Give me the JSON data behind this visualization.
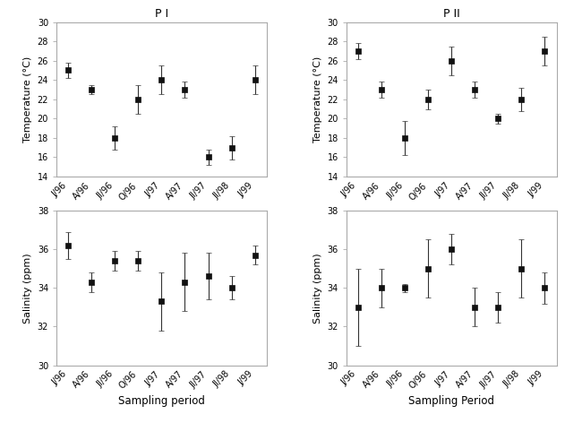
{
  "x_labels": [
    "J/96",
    "A/96",
    "JI/96",
    "O/96",
    "J/97",
    "A/97",
    "JI/97",
    "JI/98",
    "J/99"
  ],
  "pi_temp_mean": [
    25.0,
    23.0,
    18.0,
    22.0,
    24.0,
    23.0,
    16.0,
    17.0,
    24.0
  ],
  "pi_temp_sd": [
    0.8,
    0.5,
    1.2,
    1.5,
    1.5,
    0.8,
    0.8,
    1.2,
    1.5
  ],
  "pii_temp_mean": [
    27.0,
    23.0,
    18.0,
    22.0,
    26.0,
    23.0,
    20.0,
    22.0,
    27.0
  ],
  "pii_temp_sd": [
    0.8,
    0.8,
    1.8,
    1.0,
    1.5,
    0.8,
    0.5,
    1.2,
    1.5
  ],
  "pi_sal_mean": [
    36.2,
    34.3,
    35.4,
    35.4,
    33.3,
    34.3,
    34.6,
    34.0,
    35.7
  ],
  "pi_sal_sd": [
    0.7,
    0.5,
    0.5,
    0.5,
    1.5,
    1.5,
    1.2,
    0.6,
    0.5
  ],
  "pii_sal_mean": [
    33.0,
    34.0,
    34.0,
    35.0,
    36.0,
    33.0,
    33.0,
    35.0,
    34.0
  ],
  "pii_sal_sd": [
    2.0,
    1.0,
    0.2,
    1.5,
    0.8,
    1.0,
    0.8,
    1.5,
    0.8
  ],
  "temp_ylim": [
    14,
    30
  ],
  "temp_yticks": [
    14,
    16,
    18,
    20,
    22,
    24,
    26,
    28,
    30
  ],
  "sal_ylim": [
    30,
    38
  ],
  "sal_yticks": [
    30,
    32,
    34,
    36,
    38
  ],
  "pi_title": "P I",
  "pii_title": "P II",
  "temp_ylabel": "Temperature (°C)",
  "sal_ylabel": "Salinity (ppm)",
  "xlabel_pi": "Sampling period",
  "xlabel_pii": "Sampling Period",
  "dot_color": "#111111",
  "spine_color": "#aaaaaa",
  "capsize": 2,
  "elinewidth": 0.8,
  "ecolor": "#333333",
  "marker_size": 4.5,
  "title_fontsize": 9,
  "label_fontsize": 8,
  "tick_fontsize": 7,
  "xlabel_fontsize": 8.5
}
